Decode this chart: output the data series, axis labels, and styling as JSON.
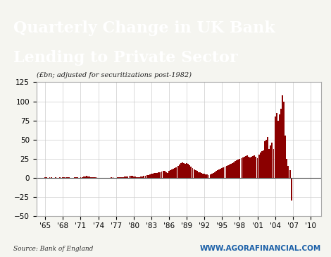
{
  "title_line1": "Quarterly Change in UK Bank",
  "title_line2": "Lending to Private Sector",
  "title_bg_color": "#2e5f8a",
  "title_text_color": "#ffffff",
  "subtitle": "(£bn; adjusted for securitizations post-1982)",
  "source_text": "Source: Bank of England",
  "watermark": "WWW.AGORAFINANCIAL.COM",
  "bar_color": "#8b0000",
  "bg_color": "#f5f5f0",
  "plot_bg_color": "#ffffff",
  "ylim": [
    -50,
    125
  ],
  "yticks": [
    -50,
    -25,
    0,
    25,
    50,
    75,
    100,
    125
  ],
  "xlabel_ticks": [
    "'65",
    "'68",
    "'71",
    "'74",
    "'77",
    "'80",
    "'83",
    "'86",
    "'89",
    "'92",
    "'95",
    "'98",
    "'01",
    "'04",
    "'07",
    "'10"
  ],
  "xlabel_values": [
    1965,
    1968,
    1971,
    1974,
    1977,
    1980,
    1983,
    1986,
    1989,
    1992,
    1995,
    1998,
    2001,
    2004,
    2007,
    2010
  ],
  "values": [
    0.3,
    0.2,
    0.1,
    0.2,
    0.2,
    0.1,
    0.1,
    0.2,
    0.1,
    0.1,
    0.2,
    0.1,
    0.3,
    0.2,
    0.3,
    0.3,
    0.2,
    0.1,
    0.1,
    0.1,
    0.2,
    0.3,
    0.2,
    0.1,
    0.4,
    0.8,
    1.2,
    1.8,
    2.2,
    1.8,
    1.3,
    0.8,
    1.0,
    0.8,
    0.6,
    0.3,
    -0.3,
    -0.8,
    -0.4,
    -0.2,
    -0.1,
    -0.4,
    -0.2,
    -0.1,
    0.1,
    0.3,
    0.2,
    0.1,
    0.1,
    0.2,
    0.4,
    0.7,
    0.9,
    1.0,
    1.3,
    1.6,
    1.8,
    2.2,
    2.8,
    2.3,
    1.8,
    1.3,
    0.8,
    0.6,
    0.8,
    1.3,
    1.8,
    2.2,
    2.8,
    3.2,
    3.8,
    4.2,
    4.8,
    5.2,
    5.8,
    6.2,
    6.5,
    7.0,
    7.5,
    8.0,
    8.5,
    9.0,
    7.5,
    6.5,
    8.5,
    9.5,
    10.5,
    11.5,
    12.5,
    13.5,
    15.5,
    17.5,
    19.5,
    20.5,
    19.5,
    18.5,
    19.5,
    18.5,
    16.5,
    14.5,
    12.5,
    10.5,
    9.5,
    8.5,
    7.5,
    7.0,
    6.5,
    5.5,
    5.0,
    4.5,
    4.0,
    3.5,
    4.5,
    5.5,
    6.5,
    7.5,
    8.5,
    9.5,
    10.5,
    11.5,
    12.5,
    13.5,
    14.5,
    15.5,
    16.5,
    17.5,
    18.5,
    19.5,
    20.5,
    21.5,
    22.5,
    23.5,
    24.5,
    25.5,
    26.5,
    27.5,
    28.5,
    29.5,
    27.5,
    26.5,
    27.5,
    28.5,
    29.5,
    27.5,
    25.5,
    30.0,
    33.0,
    35.0,
    36.0,
    48.0,
    50.0,
    53.0,
    38.0,
    42.0,
    46.0,
    38.0,
    80.0,
    85.0,
    75.0,
    83.0,
    90.0,
    108.0,
    100.0,
    55.0,
    25.0,
    15.0,
    10.0,
    -30.0
  ]
}
